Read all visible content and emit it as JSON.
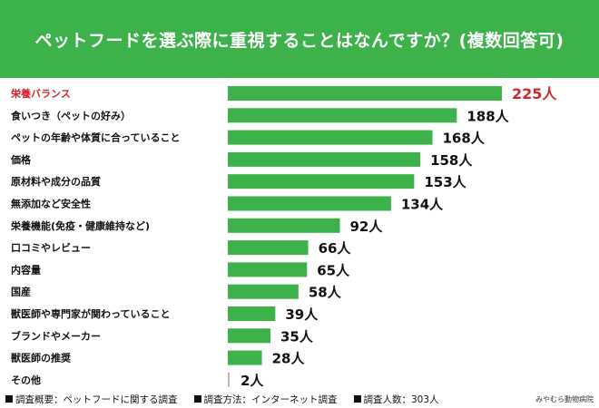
{
  "header": {
    "title": "ペットフードを選ぶ際に重視することはなんですか？(複数回答可)",
    "bg_color": "#3db24b"
  },
  "chart_data": {
    "type": "bar",
    "orientation": "horizontal",
    "unit_suffix": "人",
    "bar_color": "#3db24b",
    "highlight_color": "#d0262b",
    "highlight_index": 0,
    "categories": [
      "栄養バランス",
      "食いつき（ペットの好み）",
      "ペットの年齢や体質に合っていること",
      "価格",
      "原材料や成分の品質",
      "無添加など安全性",
      "栄養機能(免疫・健康維持など)",
      "口コミやレビュー",
      "内容量",
      "国産",
      "獣医師や専門家が関わっていること",
      "ブランドやメーカー",
      "獣医師の推奨",
      "その他"
    ],
    "values": [
      225,
      188,
      168,
      158,
      153,
      134,
      92,
      66,
      65,
      58,
      39,
      35,
      28,
      2
    ],
    "xlim": [
      0,
      225
    ],
    "grid": false,
    "legend": "none"
  },
  "footer": {
    "notes": [
      "調査概要：ペットフードに関する調査",
      "調査方法：インターネット調査",
      "調査人数：303人"
    ],
    "brand": "みやむら動物病院"
  }
}
